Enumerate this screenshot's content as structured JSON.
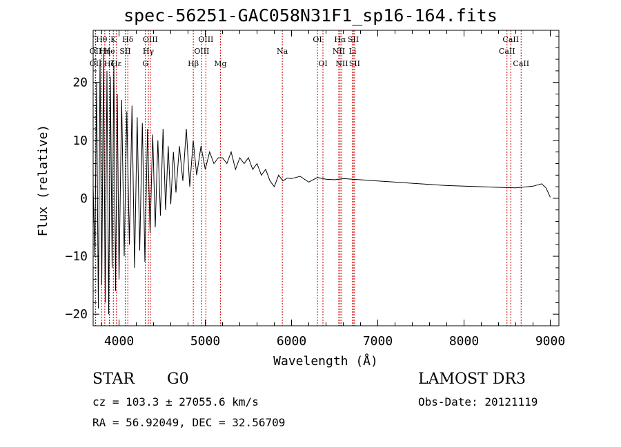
{
  "chart_data": {
    "type": "line",
    "title": "spec-56251-GAC058N31F1_sp16-164.fits",
    "xlabel": "Wavelength (Å)",
    "ylabel": "Flux (relative)",
    "xlim": [
      3700,
      9100
    ],
    "ylim": [
      -22,
      29
    ],
    "xticks": [
      4000,
      5000,
      6000,
      7000,
      8000,
      9000
    ],
    "xtick_labels": [
      "4000",
      "5000",
      "6000",
      "7000",
      "8000",
      "9000"
    ],
    "yticks": [
      -20,
      -10,
      0,
      10,
      20
    ],
    "ytick_labels": [
      "−20",
      "−10",
      "0",
      "10",
      "20"
    ],
    "series": [
      {
        "name": "flux",
        "x": [
          3700,
          3720,
          3740,
          3760,
          3780,
          3800,
          3820,
          3840,
          3860,
          3880,
          3900,
          3920,
          3940,
          3960,
          3980,
          4000,
          4030,
          4060,
          4090,
          4120,
          4150,
          4180,
          4210,
          4240,
          4270,
          4300,
          4330,
          4360,
          4390,
          4420,
          4450,
          4480,
          4510,
          4540,
          4570,
          4600,
          4630,
          4660,
          4700,
          4740,
          4780,
          4820,
          4860,
          4900,
          4950,
          5000,
          5050,
          5100,
          5150,
          5200,
          5250,
          5300,
          5350,
          5400,
          5450,
          5500,
          5550,
          5600,
          5650,
          5700,
          5750,
          5800,
          5850,
          5900,
          5950,
          6000,
          6100,
          6200,
          6300,
          6400,
          6500,
          6600,
          6700,
          6800,
          7000,
          7200,
          7400,
          7600,
          7800,
          8000,
          8200,
          8400,
          8600,
          8800,
          8900,
          8950,
          9000
        ],
        "values": [
          2,
          -10,
          20,
          -19,
          24,
          -15,
          25,
          -18,
          22,
          -20,
          21,
          -12,
          23,
          -16,
          18,
          -14,
          17,
          -10,
          15,
          -8,
          16,
          -12,
          14,
          -9,
          13,
          -11,
          12,
          -6,
          11,
          -5,
          10,
          -3,
          12,
          -2,
          9,
          -1,
          8,
          1,
          9,
          3,
          12,
          2,
          10,
          4,
          9,
          5,
          8,
          6,
          7,
          7,
          6,
          8,
          5,
          7,
          6,
          7,
          5,
          6,
          4,
          5,
          3,
          2,
          4,
          3,
          3.5,
          3.4,
          3.8,
          2.8,
          3.6,
          3.3,
          3.2,
          3.4,
          3.3,
          3.2,
          3.0,
          2.8,
          2.6,
          2.4,
          2.2,
          2.1,
          2.0,
          1.9,
          1.8,
          2.1,
          2.5,
          1.8,
          0.2
        ]
      }
    ],
    "lines": [
      {
        "label": "Hθ",
        "wavelength": 3798,
        "row": 1
      },
      {
        "label": "K",
        "wavelength": 3934,
        "row": 1
      },
      {
        "label": "Hδ",
        "wavelength": 4102,
        "row": 1
      },
      {
        "label": "OIII",
        "wavelength": 4363,
        "row": 1
      },
      {
        "label": "OIII",
        "wavelength": 5007,
        "row": 1
      },
      {
        "label": "OI",
        "wavelength": 6300,
        "row": 1
      },
      {
        "label": "Hα",
        "wavelength": 6563,
        "row": 1
      },
      {
        "label": "SII",
        "wavelength": 6716,
        "row": 1
      },
      {
        "label": "CaII",
        "wavelength": 8542,
        "row": 1
      },
      {
        "label": "OII",
        "wavelength": 3727,
        "row": 2
      },
      {
        "label": "Hη",
        "wavelength": 3835,
        "row": 2
      },
      {
        "label": "He",
        "wavelength": 3889,
        "row": 2
      },
      {
        "label": "SII",
        "wavelength": 4072,
        "row": 2
      },
      {
        "label": "Hγ",
        "wavelength": 4340,
        "row": 2
      },
      {
        "label": "OIII",
        "wavelength": 4959,
        "row": 2
      },
      {
        "label": "Na",
        "wavelength": 5893,
        "row": 2
      },
      {
        "label": "NII",
        "wavelength": 6548,
        "row": 2
      },
      {
        "label": "Li",
        "wavelength": 6708,
        "row": 2
      },
      {
        "label": "CaII",
        "wavelength": 8498,
        "row": 2
      },
      {
        "label": "OII",
        "wavelength": 3729,
        "row": 3
      },
      {
        "label": "Hζ",
        "wavelength": 3889,
        "row": 3
      },
      {
        "label": "Hε",
        "wavelength": 3970,
        "row": 3
      },
      {
        "label": "G",
        "wavelength": 4305,
        "row": 3
      },
      {
        "label": "Hβ",
        "wavelength": 4861,
        "row": 3
      },
      {
        "label": "Mg",
        "wavelength": 5175,
        "row": 3
      },
      {
        "label": "OI",
        "wavelength": 6364,
        "row": 3
      },
      {
        "label": "NII",
        "wavelength": 6583,
        "row": 3
      },
      {
        "label": "SII",
        "wavelength": 6731,
        "row": 3
      },
      {
        "label": "CaII",
        "wavelength": 8662,
        "row": 3
      }
    ]
  },
  "info": {
    "object_class": "STAR",
    "subclass": "G0",
    "survey": "LAMOST DR3",
    "cz": "cz = 103.3 ± 27055.6 km/s",
    "obs_date": "Obs-Date: 20121119",
    "coords": "RA =  56.92049, DEC =  32.56709"
  },
  "colors": {
    "line_marker": "#cc0000",
    "spectrum": "#000000"
  }
}
